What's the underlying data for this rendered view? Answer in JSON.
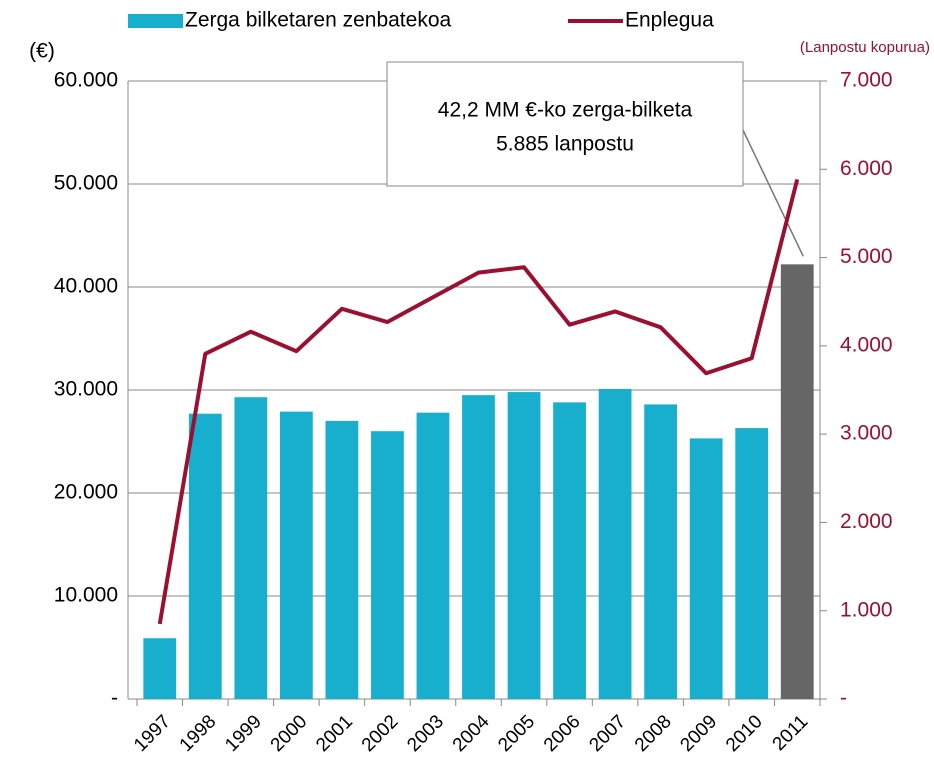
{
  "chart_data": {
    "type": "bar-line",
    "categories": [
      "1997",
      "1998",
      "1999",
      "2000",
      "2001",
      "2002",
      "2003",
      "2004",
      "2005",
      "2006",
      "2007",
      "2008",
      "2009",
      "2010",
      "2011"
    ],
    "series": [
      {
        "name": "Zerga bilketaren zenbatekoa",
        "type": "bar",
        "color": "#18afcf",
        "colors": [
          "#18afcf",
          "#18afcf",
          "#18afcf",
          "#18afcf",
          "#18afcf",
          "#18afcf",
          "#18afcf",
          "#18afcf",
          "#18afcf",
          "#18afcf",
          "#18afcf",
          "#18afcf",
          "#18afcf",
          "#18afcf",
          "#666666"
        ],
        "values": [
          5900,
          27700,
          29300,
          27900,
          27000,
          26000,
          27800,
          29500,
          29800,
          28800,
          30100,
          28600,
          25300,
          26300,
          42200
        ]
      },
      {
        "name": "Enplegua",
        "type": "line",
        "axis": "y2",
        "color": "#9b1030",
        "values": [
          850,
          3910,
          4160,
          3940,
          4420,
          4270,
          4550,
          4830,
          4890,
          4240,
          4390,
          4210,
          3690,
          3860,
          5885
        ]
      }
    ],
    "y_label": "(€)",
    "y2_label": "(Lanpostu kopurua)",
    "ylim": [
      0,
      60000
    ],
    "yticks": [
      {
        "value": 0,
        "label": "-"
      },
      {
        "value": 10000,
        "label": "10.000"
      },
      {
        "value": 20000,
        "label": "20.000"
      },
      {
        "value": 30000,
        "label": "30.000"
      },
      {
        "value": 40000,
        "label": "40.000"
      },
      {
        "value": 50000,
        "label": "50.000"
      },
      {
        "value": 60000,
        "label": "60.000"
      }
    ],
    "y2lim": [
      0,
      7000
    ],
    "y2ticks": [
      {
        "value": 0,
        "label": "-"
      },
      {
        "value": 1000,
        "label": "1.000"
      },
      {
        "value": 2000,
        "label": "2.000"
      },
      {
        "value": 3000,
        "label": "3.000"
      },
      {
        "value": 4000,
        "label": "4.000"
      },
      {
        "value": 5000,
        "label": "5.000"
      },
      {
        "value": 6000,
        "label": "6.000"
      },
      {
        "value": 7000,
        "label": "7.000"
      }
    ],
    "grid": true,
    "annotation": [
      "42,2 MM €-ko zerga-bilketa",
      "5.885 lanpostu"
    ]
  }
}
